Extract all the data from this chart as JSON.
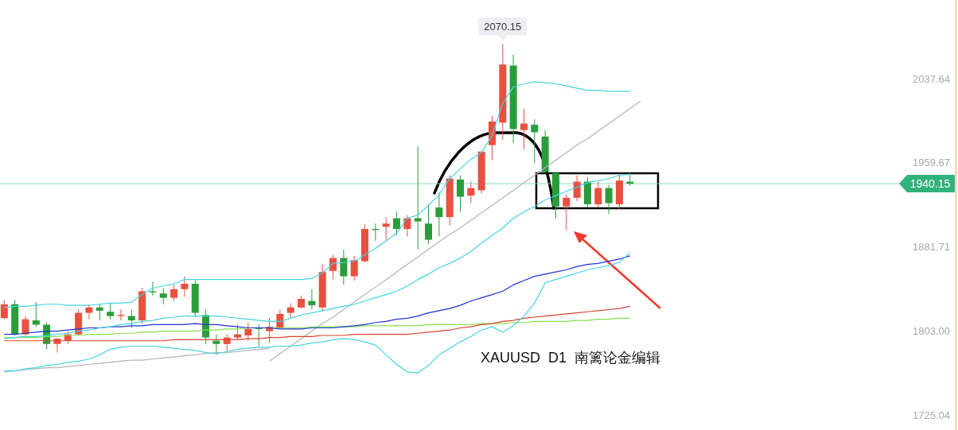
{
  "chart_data": {
    "type": "candlestick",
    "categories": [
      null,
      null,
      null,
      null,
      null,
      null,
      null,
      null,
      null,
      null,
      null,
      null,
      null,
      null,
      null,
      null,
      null,
      null,
      null,
      null,
      null,
      null,
      null,
      null,
      null,
      null,
      null,
      null,
      null,
      null,
      null,
      null,
      null,
      null,
      null,
      null,
      null,
      null,
      null,
      null,
      null,
      null,
      null,
      null,
      null,
      null,
      null,
      null,
      null,
      null,
      null,
      null,
      null,
      null,
      null,
      null,
      null,
      null,
      null,
      null,
      null,
      null,
      null,
      null,
      null,
      null,
      null,
      null,
      null,
      null,
      null,
      null,
      null,
      null,
      null,
      null,
      null,
      null,
      null,
      null,
      null,
      null,
      null,
      null,
      null,
      null,
      null,
      null,
      null,
      null
    ],
    "ohlc": [
      [
        1815,
        1832,
        1814,
        1828
      ],
      [
        1828,
        1832,
        1799,
        1800
      ],
      [
        1800,
        1817,
        1799,
        1814
      ],
      [
        1813,
        1830,
        1807,
        1809
      ],
      [
        1809,
        1811,
        1786,
        1791
      ],
      [
        1791,
        1796,
        1783,
        1796
      ],
      [
        1794,
        1803,
        1791,
        1800
      ],
      [
        1800,
        1823,
        1799,
        1820
      ],
      [
        1820,
        1828,
        1814,
        1825
      ],
      [
        1825,
        1828,
        1813,
        1822
      ],
      [
        1821,
        1829,
        1814,
        1817
      ],
      [
        1817,
        1823,
        1813,
        1818
      ],
      [
        1817,
        1823,
        1806,
        1813
      ],
      [
        1813,
        1843,
        1810,
        1840
      ],
      [
        1840,
        1849,
        1836,
        1839
      ],
      [
        1838,
        1843,
        1828,
        1834
      ],
      [
        1834,
        1846,
        1831,
        1842
      ],
      [
        1842,
        1854,
        1835,
        1847
      ],
      [
        1847,
        1850,
        1816,
        1820
      ],
      [
        1818,
        1823,
        1791,
        1797
      ],
      [
        1794,
        1800,
        1781,
        1791
      ],
      [
        1791,
        1800,
        1784,
        1797
      ],
      [
        1797,
        1809,
        1795,
        1800
      ],
      [
        1799,
        1811,
        1794,
        1805
      ],
      [
        1806,
        1809,
        1789,
        1805
      ],
      [
        1803,
        1815,
        1792,
        1807
      ],
      [
        1806,
        1823,
        1805,
        1819
      ],
      [
        1820,
        1829,
        1815,
        1825
      ],
      [
        1825,
        1836,
        1824,
        1833
      ],
      [
        1831,
        1842,
        1823,
        1827
      ],
      [
        1825,
        1865,
        1821,
        1858
      ],
      [
        1859,
        1874,
        1851,
        1871
      ],
      [
        1871,
        1879,
        1846,
        1854
      ],
      [
        1854,
        1873,
        1850,
        1869
      ],
      [
        1868,
        1902,
        1867,
        1898
      ],
      [
        1898,
        1903,
        1887,
        1897
      ],
      [
        1900,
        1909,
        1888,
        1903
      ],
      [
        1908,
        1914,
        1892,
        1898
      ],
      [
        1898,
        1911,
        1891,
        1908
      ],
      [
        1908,
        1975,
        1879,
        1905
      ],
      [
        1903,
        1921,
        1884,
        1888
      ],
      [
        1918,
        1932,
        1891,
        1909
      ],
      [
        1909,
        1948,
        1901,
        1945
      ],
      [
        1944,
        1948,
        1914,
        1928
      ],
      [
        1929,
        1942,
        1922,
        1936
      ],
      [
        1934,
        1970,
        1931,
        1970
      ],
      [
        1976,
        2003,
        1962,
        1998
      ],
      [
        1997,
        2070.15,
        1981,
        2051
      ],
      [
        2050,
        2060,
        1978,
        1991
      ],
      [
        1990,
        2010,
        1972,
        1996
      ],
      [
        1995,
        2000,
        1959,
        1988
      ],
      [
        1984,
        1990,
        1950,
        1951
      ],
      [
        1950,
        1951,
        1908,
        1919
      ],
      [
        1919,
        1930,
        1897,
        1927
      ],
      [
        1927,
        1948,
        1924,
        1942
      ],
      [
        1942,
        1946,
        1918,
        1921
      ],
      [
        1921,
        1942,
        1918,
        1936
      ],
      [
        1936,
        1939,
        1912,
        1922
      ],
      [
        1921,
        1948,
        1916,
        1943
      ],
      [
        1942,
        1950,
        1938,
        1940.15
      ],
      null,
      null,
      null,
      null,
      null,
      null,
      null,
      null,
      null,
      null,
      null,
      null,
      null,
      null,
      null,
      null,
      null,
      null,
      null,
      null,
      null,
      null,
      null,
      null,
      null,
      null,
      null,
      null,
      null,
      null
    ],
    "colors": [
      "#e9503f",
      "#2a9d3a",
      "#e9503f",
      "#2a9d3a",
      "#2a9d3a",
      "#e9503f",
      "#e9503f",
      "#e9503f",
      "#e9503f",
      "#2a9d3a",
      "#2a9d3a",
      "#e9503f",
      "#2a9d3a",
      "#e9503f",
      "#2a9d3a",
      "#2a9d3a",
      "#e9503f",
      "#e9503f",
      "#2a9d3a",
      "#2a9d3a",
      "#2a9d3a",
      "#e9503f",
      "#e9503f",
      "#e9503f",
      "#2a9d3a",
      "#e9503f",
      "#e9503f",
      "#e9503f",
      "#e9503f",
      "#2a9d3a",
      "#e9503f",
      "#e9503f",
      "#2a9d3a",
      "#e9503f",
      "#e9503f",
      "#2a9d3a",
      "#e9503f",
      "#2a9d3a",
      "#e9503f",
      "#2a9d3a",
      "#2a9d3a",
      "#2a9d3a",
      "#e9503f",
      "#2a9d3a",
      "#e9503f",
      "#e9503f",
      "#e9503f",
      "#e9503f",
      "#2a9d3a",
      "#e9503f",
      "#2a9d3a",
      "#2a9d3a",
      "#2a9d3a",
      "#e9503f",
      "#e9503f",
      "#2a9d3a",
      "#e9503f",
      "#2a9d3a",
      "#e9503f",
      "#2a9d3a",
      null,
      null,
      null,
      null,
      null,
      null,
      null,
      null,
      null,
      null,
      null,
      null,
      null,
      null,
      null,
      null,
      null,
      null,
      null,
      null,
      null,
      null,
      null,
      null,
      null,
      null,
      null,
      null,
      null,
      null
    ],
    "series": [
      {
        "type": "line",
        "color": "#b4b4b4",
        "values": [
          1765,
          1766,
          1767,
          1768,
          1769,
          1769,
          1770,
          1771,
          1772,
          1773,
          1774,
          1775,
          1776,
          1776,
          1777,
          1778,
          1779,
          1780,
          1781,
          1782,
          1783,
          1783,
          1784,
          1785,
          1786,
          1787,
          null,
          null,
          null,
          null,
          null,
          null,
          null,
          null,
          null,
          null,
          null,
          null,
          null,
          null,
          null,
          null,
          null,
          null,
          null,
          null,
          null,
          null,
          null,
          null,
          null,
          null,
          null,
          null,
          null,
          null,
          null,
          null,
          null,
          null,
          null,
          null,
          null,
          null,
          null,
          null,
          null,
          null,
          null,
          null,
          null,
          null,
          null,
          null,
          null,
          null,
          null,
          null,
          null,
          null,
          null,
          null,
          null,
          null,
          null,
          null,
          null,
          null,
          null,
          null
        ]
      },
      {
        "type": "line",
        "color": "#b4b4b4",
        "values": [
          null,
          null,
          null,
          null,
          null,
          null,
          null,
          null,
          null,
          null,
          null,
          null,
          null,
          null,
          null,
          null,
          null,
          null,
          null,
          null,
          null,
          null,
          null,
          null,
          null,
          1775,
          1782,
          1789,
          1796,
          1803,
          1810,
          1816,
          1823,
          1830,
          1837,
          1844,
          1851,
          1858,
          1865,
          1872,
          1879,
          1886,
          1893,
          1899,
          1906,
          1913,
          1920,
          1927,
          1934,
          1941,
          1948,
          1955,
          1962,
          1969,
          1976,
          1982,
          1989,
          1996,
          2003,
          2010,
          2017,
          null,
          null,
          null,
          null,
          null,
          null,
          null,
          null,
          null,
          null,
          null,
          null,
          null,
          null,
          null,
          null,
          null,
          null,
          null,
          null,
          null,
          null,
          null,
          null,
          null,
          null,
          null,
          null,
          null
        ]
      },
      {
        "type": "line",
        "color": "#86e04f",
        "values": [
          1797,
          1797,
          1797,
          1797,
          1798,
          1798,
          1799,
          1799,
          1800,
          1800,
          1800,
          1801,
          1801,
          1802,
          1802,
          1803,
          1803,
          1803,
          1803,
          1804,
          1804,
          1805,
          1805,
          1806,
          1806,
          1806,
          1806,
          1806,
          1806,
          1807,
          1807,
          1807,
          1807,
          1807,
          1808,
          1808,
          1808,
          1808,
          1808,
          1808,
          1809,
          1809,
          1809,
          1809,
          1809,
          1810,
          1810,
          1810,
          1811,
          1811,
          1812,
          1812,
          1812,
          1812,
          1813,
          1813,
          1814,
          1814,
          1815,
          1815,
          null,
          null,
          null,
          null,
          null,
          null,
          null,
          null,
          null,
          null,
          null,
          null,
          null,
          null,
          null,
          null,
          null,
          null,
          null,
          null,
          null,
          null,
          null,
          null,
          null,
          null,
          null,
          null,
          null,
          null
        ]
      },
      {
        "type": "line",
        "color": "#d8432c",
        "values": [
          1794,
          1794,
          1794,
          1794,
          1794,
          1794,
          1794,
          1794,
          1794,
          1794,
          1794,
          1794,
          1794,
          1794,
          1794,
          1794,
          1795,
          1795,
          1795,
          1795,
          1795,
          1795,
          1795,
          1796,
          1796,
          1797,
          1797,
          1798,
          1798,
          1798,
          1799,
          1799,
          1799,
          1800,
          1800,
          1800,
          1800,
          1800,
          1800,
          1801,
          1802,
          1803,
          1804,
          1806,
          1807,
          1809,
          1810,
          1812,
          1813,
          1815,
          1816,
          1817,
          1818,
          1819,
          1820,
          1821,
          1822,
          1823,
          1824,
          1826,
          null,
          null,
          null,
          null,
          null,
          null,
          null,
          null,
          null,
          null,
          null,
          null,
          null,
          null,
          null,
          null,
          null,
          null,
          null,
          null,
          null,
          null,
          null,
          null,
          null,
          null,
          null,
          null,
          null,
          null
        ]
      },
      {
        "type": "line",
        "color": "#1c34d4",
        "values": [
          1800,
          1800,
          1801,
          1802,
          1803,
          1803,
          1804,
          1805,
          1806,
          1806,
          1807,
          1807,
          1808,
          1808,
          1809,
          1809,
          1809,
          1809,
          1810,
          1809,
          1809,
          1808,
          1807,
          1806,
          1806,
          1806,
          1805,
          1805,
          1805,
          1806,
          1806,
          1806,
          1807,
          1808,
          1809,
          1811,
          1812,
          1814,
          1815,
          1817,
          1820,
          1822,
          1824,
          1827,
          1831,
          1834,
          1837,
          1840,
          1846,
          1850,
          1854,
          1856,
          1858,
          1860,
          1863,
          1865,
          1866,
          1868,
          1870,
          1873,
          null,
          null,
          null,
          null,
          null,
          null,
          null,
          null,
          null,
          null,
          null,
          null,
          null,
          null,
          null,
          null,
          null,
          null,
          null,
          null,
          null,
          null,
          null,
          null,
          null,
          null,
          null,
          null,
          null,
          null
        ]
      },
      {
        "type": "line",
        "color": "#44d4e4",
        "values": [
          1825,
          1826,
          1826,
          1827,
          1828,
          1828,
          1827,
          1827,
          1827,
          1828,
          1829,
          1829,
          1830,
          1837,
          1843,
          1845,
          1847,
          1851,
          1851,
          1851,
          1851,
          1851,
          1851,
          1851,
          1851,
          1851,
          1851,
          1851,
          1851,
          1852,
          1857,
          1866,
          1867,
          1868,
          1874,
          1880,
          1887,
          1894,
          1908,
          1911,
          1920,
          1930,
          1945,
          1954,
          1963,
          1969,
          1985,
          2015,
          2030,
          2033,
          2035,
          2034,
          2033,
          2031,
          2029,
          2027,
          2027,
          2026,
          2026,
          2026,
          null,
          null,
          null,
          null,
          null,
          null,
          null,
          null,
          null,
          null,
          null,
          null,
          null,
          null,
          null,
          null,
          null,
          null,
          null,
          null,
          null,
          null,
          null,
          null,
          null,
          null,
          null,
          null,
          null,
          null
        ]
      },
      {
        "type": "line",
        "color": "#44d4e4",
        "values": [
          1796,
          1797,
          1798,
          1798,
          1799,
          1800,
          1801,
          1803,
          1804,
          1806,
          1807,
          1809,
          1810,
          1812,
          1813,
          1815,
          1816,
          1817,
          1817,
          1817,
          1817,
          1816,
          1815,
          1814,
          1813,
          1812,
          1812,
          1815,
          1818,
          1820,
          1822,
          1824,
          1826,
          1828,
          1831,
          1834,
          1837,
          1840,
          1845,
          1851,
          1856,
          1862,
          1866,
          1871,
          1877,
          1885,
          1892,
          1899,
          1908,
          1914,
          1919,
          1925,
          1929,
          1933,
          1937,
          1941,
          1943,
          1945,
          1948,
          1949,
          null,
          null,
          null,
          null,
          null,
          null,
          null,
          null,
          null,
          null,
          null,
          null,
          null,
          null,
          null,
          null,
          null,
          null,
          null,
          null,
          null,
          null,
          null,
          null,
          null,
          null,
          null,
          null,
          null,
          null
        ]
      },
      {
        "type": "line",
        "color": "#44d4e4",
        "values": [
          1766,
          1766,
          1768,
          1769,
          1771,
          1772,
          1774,
          1775,
          1777,
          1781,
          1786,
          1788,
          1789,
          1789,
          1789,
          1788,
          1787,
          1786,
          1785,
          1783,
          1782,
          1784,
          1786,
          1787,
          1788,
          1788,
          1789,
          1789,
          1790,
          1792,
          1793,
          1795,
          1796,
          1795,
          1793,
          1790,
          1781,
          1772,
          1765,
          1764,
          1771,
          1781,
          1787,
          1793,
          1798,
          1804,
          1807,
          1802,
          1808,
          1817,
          1829,
          1848,
          1851,
          1854,
          1857,
          1860,
          1862,
          1864,
          1867,
          1876,
          null,
          null,
          null,
          null,
          null,
          null,
          null,
          null,
          null,
          null,
          null,
          null,
          null,
          null,
          null,
          null,
          null,
          null,
          null,
          null,
          null,
          null,
          null,
          null,
          null,
          null,
          null,
          null,
          null,
          null
        ]
      }
    ],
    "ylim": [
      1711,
      2111
    ],
    "yticks": [
      2037.64,
      1959.67,
      1881.71,
      {
        "value": 1803,
        "label": "1803.00"
      },
      1725.04
    ],
    "tick_labels": "y",
    "ref_lines": [
      {
        "axis": "y",
        "value": 1940.15,
        "label": "1940.15",
        "color": "#8fd8bd"
      }
    ],
    "annotations": [
      "2070.15",
      "XAUUSD  D1  南篱论金编辑"
    ]
  }
}
